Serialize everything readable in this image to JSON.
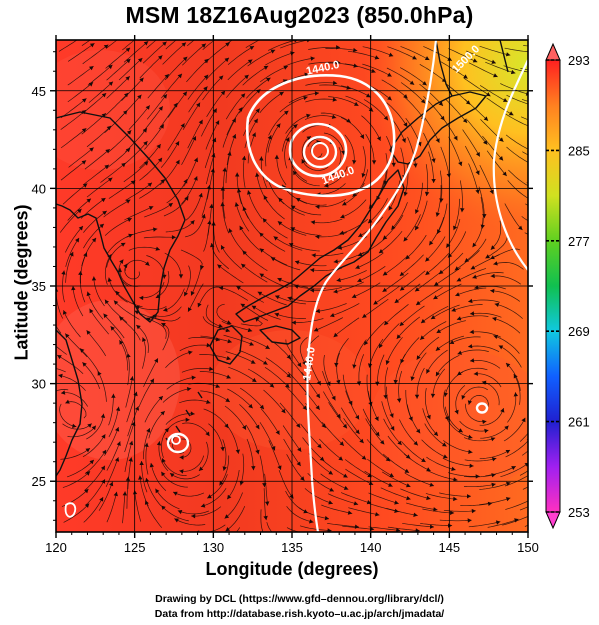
{
  "title": "MSM 18Z16Aug2023 (850.0hPa)",
  "x_axis": {
    "label": "Longitude (degrees)",
    "range": [
      120,
      150
    ],
    "ticks": [
      {
        "value": 120,
        "label": "120"
      },
      {
        "value": 125,
        "label": "125"
      },
      {
        "value": 130,
        "label": "130"
      },
      {
        "value": 135,
        "label": "135"
      },
      {
        "value": 140,
        "label": "140"
      },
      {
        "value": 145,
        "label": "145"
      },
      {
        "value": 150,
        "label": "150"
      }
    ]
  },
  "y_axis": {
    "label": "Latitude  (degrees)",
    "range": [
      22.4,
      47.6
    ],
    "ticks": [
      {
        "value": 25,
        "label": "25"
      },
      {
        "value": 30,
        "label": "30"
      },
      {
        "value": 35,
        "label": "35"
      },
      {
        "value": 40,
        "label": "40"
      },
      {
        "value": 45,
        "label": "45"
      }
    ]
  },
  "colorbar": {
    "min": 253,
    "max": 293,
    "ticks": [
      {
        "value": 293,
        "label": "293"
      },
      {
        "value": 285,
        "label": "285"
      },
      {
        "value": 277,
        "label": "277"
      },
      {
        "value": 269,
        "label": "269"
      },
      {
        "value": 261,
        "label": "261"
      },
      {
        "value": 253,
        "label": "253"
      }
    ],
    "colors": [
      "#ff30c0",
      "#a020f0",
      "#2020d0",
      "#1060ff",
      "#10c8e0",
      "#10c050",
      "#60d020",
      "#d0e020",
      "#ffc020",
      "#ff8020",
      "#ff2020"
    ]
  },
  "contour_labels": [
    {
      "text": "1440.0",
      "lon": 137.0,
      "lat": 46.0,
      "angle": -12
    },
    {
      "text": "1440.0",
      "lon": 138.0,
      "lat": 40.5,
      "angle": -20
    },
    {
      "text": "1440.0",
      "lon": 136.3,
      "lat": 31.0,
      "angle": -82
    },
    {
      "text": "1500.0",
      "lon": 146.2,
      "lat": 46.5,
      "angle": -45
    }
  ],
  "credits": {
    "line1": "Drawing by DCL (https://www.gfd–dennou.org/library/dcl/)",
    "line2": "Data from http://database.rish.kyoto–u.ac.jp/arch/jmadata/"
  }
}
